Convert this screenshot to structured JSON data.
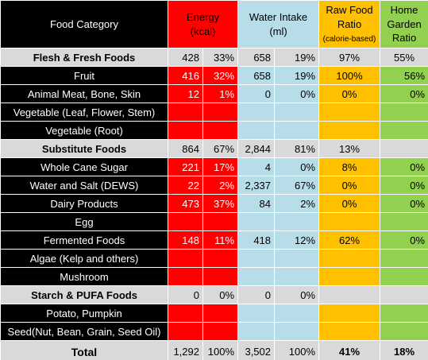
{
  "header": {
    "category": "Food Category",
    "energy_line1": "Energy",
    "energy_line2": "(kcal)",
    "water_line1": "Water Intake",
    "water_line2": "(ml)",
    "raw_line1": "Raw Food",
    "raw_line2": "Ratio",
    "raw_line3": "(calorie-based)",
    "home_line1": "Home",
    "home_line2": "Garden",
    "home_line3": "Ratio"
  },
  "rows": [
    {
      "label": "Flesh & Fresh Foods",
      "energy": "428",
      "energy_pct": "33%",
      "water": "658",
      "water_pct": "19%",
      "raw": "97%",
      "home": "55%"
    },
    {
      "label": "Fruit",
      "energy": "416",
      "energy_pct": "32%",
      "water": "658",
      "water_pct": "19%",
      "raw": "100%",
      "home": "56%"
    },
    {
      "label": "Animal Meat, Bone, Skin",
      "energy": "12",
      "energy_pct": "1%",
      "water": "0",
      "water_pct": "0%",
      "raw": "0%",
      "home": "0%"
    },
    {
      "label": "Vegetable (Leaf, Flower, Stem)",
      "energy": "",
      "energy_pct": "",
      "water": "",
      "water_pct": "",
      "raw": "",
      "home": ""
    },
    {
      "label": "Vegetable (Root)",
      "energy": "",
      "energy_pct": "",
      "water": "",
      "water_pct": "",
      "raw": "",
      "home": ""
    },
    {
      "label": "Substitute Foods",
      "energy": "864",
      "energy_pct": "67%",
      "water": "2,844",
      "water_pct": "81%",
      "raw": "13%",
      "home": ""
    },
    {
      "label": "Whole Cane Sugar",
      "energy": "221",
      "energy_pct": "17%",
      "water": "4",
      "water_pct": "0%",
      "raw": "8%",
      "home": "0%"
    },
    {
      "label": "Water and Salt (DEWS)",
      "energy": "22",
      "energy_pct": "2%",
      "water": "2,337",
      "water_pct": "67%",
      "raw": "0%",
      "home": "0%"
    },
    {
      "label": "Dairy Products",
      "energy": "473",
      "energy_pct": "37%",
      "water": "84",
      "water_pct": "2%",
      "raw": "0%",
      "home": "0%"
    },
    {
      "label": "Egg",
      "energy": "",
      "energy_pct": "",
      "water": "",
      "water_pct": "",
      "raw": "",
      "home": ""
    },
    {
      "label": "Fermented Foods",
      "energy": "148",
      "energy_pct": "11%",
      "water": "418",
      "water_pct": "12%",
      "raw": "62%",
      "home": "0%"
    },
    {
      "label": "Algae (Kelp and others)",
      "energy": "",
      "energy_pct": "",
      "water": "",
      "water_pct": "",
      "raw": "",
      "home": ""
    },
    {
      "label": "Mushroom",
      "energy": "",
      "energy_pct": "",
      "water": "",
      "water_pct": "",
      "raw": "",
      "home": ""
    },
    {
      "label": "Starch & PUFA Foods",
      "energy": "0",
      "energy_pct": "0%",
      "water": "0",
      "water_pct": "0%",
      "raw": "",
      "home": ""
    },
    {
      "label": "Potato, Pumpkin",
      "energy": "",
      "energy_pct": "",
      "water": "",
      "water_pct": "",
      "raw": "",
      "home": ""
    },
    {
      "label": "Seed(Nut, Bean, Grain, Seed Oil)",
      "energy": "",
      "energy_pct": "",
      "water": "",
      "water_pct": "",
      "raw": "",
      "home": ""
    }
  ],
  "total": {
    "label": "Total",
    "energy": "1,292",
    "energy_pct": "100%",
    "water": "3,502",
    "water_pct": "100%",
    "raw": "41%",
    "home": "18%"
  },
  "colors": {
    "energy": "#ff0000",
    "water": "#b7dde8",
    "raw": "#ffc000",
    "home": "#92d050",
    "section": "#d9d9d9",
    "item": "#000000"
  }
}
